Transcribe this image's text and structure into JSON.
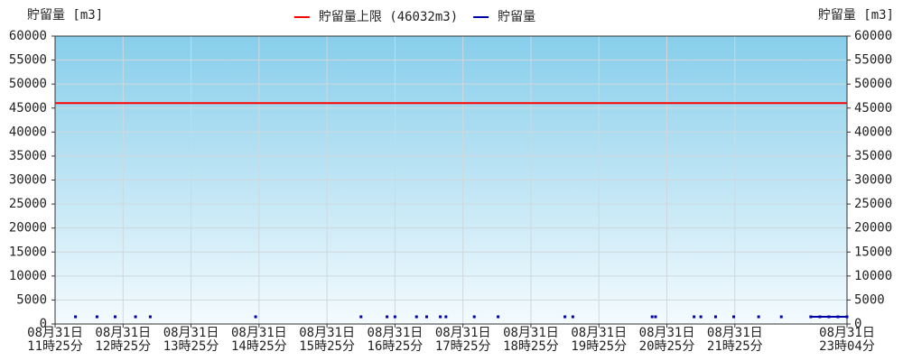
{
  "chart_data": {
    "type": "line",
    "y_label": "貯留量 [m3]",
    "y2_label": "貯留量 [m3]",
    "xlim": [
      "11:25",
      "23:04"
    ],
    "xticks": [
      {
        "value": "11:25",
        "label": "08月31日\n11時25分"
      },
      {
        "value": "12:25",
        "label": "08月31日\n12時25分"
      },
      {
        "value": "13:25",
        "label": "08月31日\n13時25分"
      },
      {
        "value": "14:25",
        "label": "08月31日\n14時25分"
      },
      {
        "value": "15:25",
        "label": "08月31日\n15時25分"
      },
      {
        "value": "16:25",
        "label": "08月31日\n16時25分"
      },
      {
        "value": "17:25",
        "label": "08月31日\n17時25分"
      },
      {
        "value": "18:25",
        "label": "08月31日\n18時25分"
      },
      {
        "value": "19:25",
        "label": "08月31日\n19時25分"
      },
      {
        "value": "20:25",
        "label": "08月31日\n20時25分"
      },
      {
        "value": "21:25",
        "label": "08月31日\n21時25分"
      },
      {
        "value": "23:04",
        "label": "08月31日\n23時04分"
      }
    ],
    "ylim": [
      0,
      60000
    ],
    "yticks": [
      0,
      5000,
      10000,
      15000,
      20000,
      25000,
      30000,
      35000,
      40000,
      45000,
      50000,
      55000,
      60000
    ],
    "y2lim": [
      0,
      60000
    ],
    "y2ticks": [
      0,
      5000,
      10000,
      15000,
      20000,
      25000,
      30000,
      35000,
      40000,
      45000,
      50000,
      55000,
      60000
    ],
    "grid": true,
    "legend": "top",
    "series": [
      {
        "name": "貯留量上限 (46032m3)",
        "color": "#ff0000",
        "x": [
          "11:25",
          "23:04"
        ],
        "values": [
          46032,
          46032
        ]
      },
      {
        "name": "貯留量",
        "color": "#0000aa",
        "x": [
          "11:43",
          "11:50",
          "12:02",
          "12:10",
          "12:18",
          "12:27",
          "12:36",
          "12:42",
          "12:49",
          "13:30",
          "14:22",
          "15:10",
          "15:55",
          "16:10",
          "16:18",
          "16:21",
          "16:25",
          "16:35",
          "16:44",
          "16:49",
          "16:53",
          "17:00",
          "17:05",
          "17:07",
          "17:10",
          "17:20",
          "17:35",
          "17:45",
          "17:56",
          "18:30",
          "18:55",
          "18:58",
          "19:02",
          "19:40",
          "20:12",
          "20:14",
          "20:15",
          "20:30",
          "20:49",
          "20:52",
          "20:55",
          "21:00",
          "21:08",
          "21:15",
          "21:24",
          "21:35",
          "21:46",
          "21:55",
          "22:06",
          "22:20",
          "22:32",
          "22:40",
          "22:48",
          "22:56",
          "23:04"
        ],
        "values": [
          1500,
          null,
          1500,
          null,
          1500,
          null,
          1500,
          null,
          1500,
          null,
          1500,
          null,
          1500,
          null,
          1500,
          null,
          1500,
          null,
          1500,
          null,
          1500,
          null,
          1500,
          null,
          1500,
          null,
          1500,
          null,
          1500,
          null,
          1500,
          null,
          1500,
          null,
          1500,
          null,
          1500,
          null,
          1500,
          null,
          1500,
          null,
          1500,
          null,
          1500,
          null,
          1500,
          null,
          1500,
          null,
          1500,
          1500,
          1500,
          1500,
          1500
        ]
      }
    ]
  }
}
